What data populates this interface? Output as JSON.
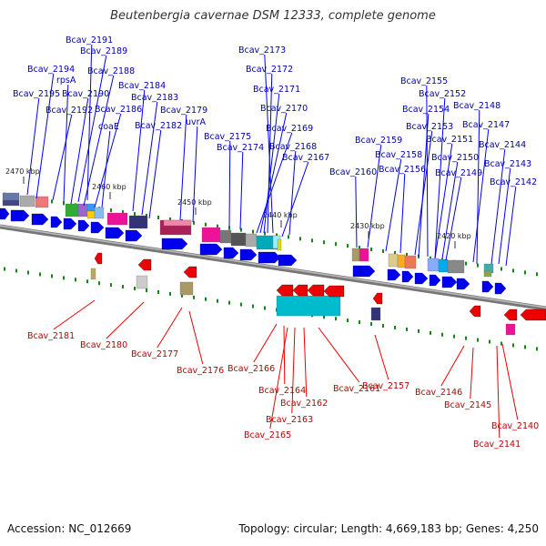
{
  "title": "Beutenbergia cavernae DSM 12333, complete genome",
  "footer": {
    "accession": "Accession: NC_012669",
    "topology": "Topology: circular; Length: 4,669,183 bp; Genes: 4,250"
  },
  "colors": {
    "forward_arrow": "#0000ee",
    "reverse_arrow": "#ee0000",
    "forward_label": "#0000aa",
    "reverse_label": "#bb0000",
    "backbone": "#888888",
    "tick": "#118811"
  },
  "scale_labels": [
    "2470 kbp",
    "2460 kbp",
    "2450 kbp",
    "2440 kbp",
    "2430 kbp",
    "2420 kbp"
  ],
  "forward_genes": [
    "Bcav_2191",
    "Bcav_2189",
    "Bcav_2194",
    "rpsA",
    "Bcav_2188",
    "Bcav_2195",
    "Bcav_2190",
    "Bcav_2184",
    "Bcav_2183",
    "Bcav_2192",
    "Bcav_2186",
    "Bcav_2179",
    "coaE",
    "Bcav_2182",
    "uvrA",
    "Bcav_2173",
    "Bcav_2172",
    "Bcav_2171",
    "Bcav_2170",
    "Bcav_2169",
    "Bcav_2175",
    "Bcav_2168",
    "Bcav_2174",
    "Bcav_2167",
    "Bcav_2155",
    "Bcav_2152",
    "Bcav_2154",
    "Bcav_2148",
    "Bcav_2153",
    "Bcav_2147",
    "Bcav_2159",
    "Bcav_2151",
    "Bcav_2144",
    "Bcav_2158",
    "Bcav_2150",
    "Bcav_2160",
    "Bcav_2156",
    "Bcav_2143",
    "Bcav_2149",
    "Bcav_2142"
  ],
  "reverse_genes": [
    "Bcav_2181",
    "Bcav_2180",
    "Bcav_2177",
    "Bcav_2176",
    "Bcav_2166",
    "Bcav_2164",
    "Bcav_2161",
    "Bcav_2157",
    "Bcav_2162",
    "Bcav_2163",
    "Bcav_2165",
    "Bcav_2146",
    "Bcav_2145",
    "Bcav_2140",
    "Bcav_2141"
  ]
}
